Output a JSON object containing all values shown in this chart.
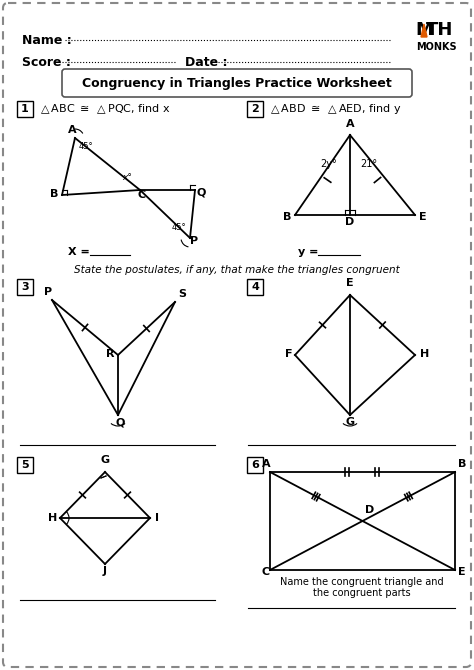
{
  "title": "Congruency in Triangles Practice Worksheet",
  "name_label": "Name :",
  "score_label": "Score :",
  "date_label": "Date :",
  "bg_color": "#ffffff",
  "border_color": "#555555",
  "text_color": "#1a1a1a"
}
